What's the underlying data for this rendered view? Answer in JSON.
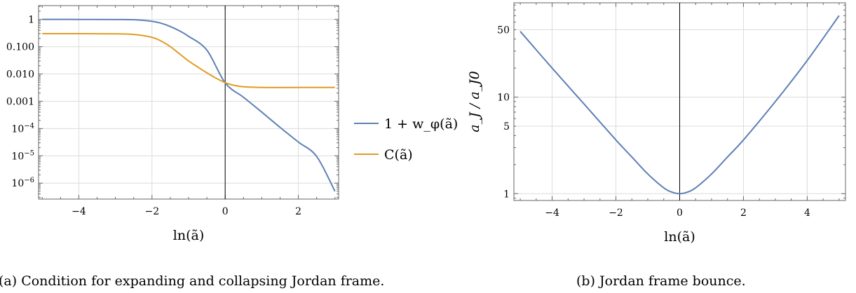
{
  "colors": {
    "blue": "#5e81b5",
    "orange": "#e19c24",
    "grid": "#dcdcdc",
    "frame": "#666666"
  },
  "chart_data": [
    {
      "type": "line",
      "panel": "a",
      "caption": "(a) Condition for expanding and collapsing Jordan frame.",
      "xlabel": "ln(ã)",
      "ylabel": "",
      "xlim": [
        -5.1,
        3.1
      ],
      "ylim": [
        2.6e-07,
        3.2
      ],
      "y_scale": "log",
      "grid": true,
      "legend_position": "right-outside",
      "x_ticks": [
        {
          "value": -4,
          "label": "−4"
        },
        {
          "value": -2,
          "label": "−2"
        },
        {
          "value": 0,
          "label": "0"
        },
        {
          "value": 2,
          "label": "2"
        }
      ],
      "y_ticks": [
        {
          "value": 1,
          "label": "1"
        },
        {
          "value": 0.1,
          "label": "0.100"
        },
        {
          "value": 0.01,
          "label": "0.010"
        },
        {
          "value": 0.001,
          "label": "0.001"
        },
        {
          "value": 0.0001,
          "label": "10",
          "sup": "−4"
        },
        {
          "value": 1e-05,
          "label": "10",
          "sup": "−5"
        },
        {
          "value": 1e-06,
          "label": "10",
          "sup": "−6"
        }
      ],
      "series": [
        {
          "name": "1 + w_φ(ã)",
          "color": "blue",
          "x": [
            -5,
            -4,
            -3,
            -2.5,
            -2,
            -1.75,
            -1.5,
            -1.25,
            -1,
            -0.5,
            0,
            0.5,
            1,
            1.5,
            2,
            2.5,
            3
          ],
          "y": [
            0.999,
            0.998,
            0.99,
            0.97,
            0.85,
            0.72,
            0.55,
            0.38,
            0.24,
            0.075,
            0.0047,
            0.0014,
            0.0004,
            0.00011,
            3.2e-05,
            9.5e-06,
            5e-07
          ]
        },
        {
          "name": "C(ã)",
          "color": "orange",
          "x": [
            -5,
            -4,
            -3,
            -2.5,
            -2,
            -1.75,
            -1.5,
            -1.25,
            -1,
            -0.75,
            -0.5,
            -0.25,
            0,
            0.25,
            0.5,
            1,
            2,
            3
          ],
          "y": [
            0.3,
            0.3,
            0.295,
            0.28,
            0.22,
            0.16,
            0.1,
            0.055,
            0.03,
            0.018,
            0.011,
            0.007,
            0.0048,
            0.0038,
            0.0034,
            0.0032,
            0.0032,
            0.0032
          ]
        }
      ],
      "vline_x": 0
    },
    {
      "type": "line",
      "panel": "b",
      "caption": "(b) Jordan frame bounce.",
      "xlabel": "ln(ã)",
      "ylabel": "a_J / a_J0",
      "xlim": [
        -5.2,
        5.2
      ],
      "ylim": [
        0.85,
        95
      ],
      "y_scale": "log",
      "grid": true,
      "x_ticks": [
        {
          "value": -4,
          "label": "−4"
        },
        {
          "value": -2,
          "label": "−2"
        },
        {
          "value": 0,
          "label": "0"
        },
        {
          "value": 2,
          "label": "2"
        },
        {
          "value": 4,
          "label": "4"
        }
      ],
      "y_ticks": [
        {
          "value": 50,
          "label": "50"
        },
        {
          "value": 10,
          "label": "10"
        },
        {
          "value": 5,
          "label": "5"
        },
        {
          "value": 1,
          "label": "1"
        }
      ],
      "series": [
        {
          "name": "",
          "color": "blue",
          "x": [
            -5,
            -4,
            -3,
            -2,
            -1.5,
            -1,
            -0.5,
            -0.25,
            0,
            0.25,
            0.5,
            1,
            1.5,
            2,
            3,
            4,
            5
          ],
          "y": [
            48,
            20,
            8.5,
            3.6,
            2.4,
            1.6,
            1.15,
            1.04,
            1.0,
            1.04,
            1.15,
            1.6,
            2.4,
            3.6,
            9.0,
            24,
            70
          ]
        }
      ],
      "vline_x": 0
    }
  ]
}
